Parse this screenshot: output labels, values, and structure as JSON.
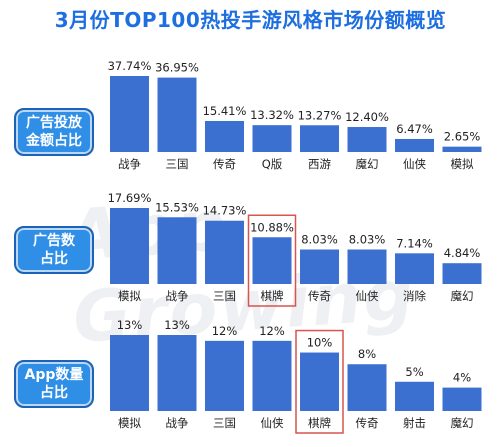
{
  "title": "3月份TOP100热投手游风格市场份额概览",
  "watermark": "App Growing",
  "colors": {
    "bar": "#3b6fd0",
    "highlight": "#d9534f",
    "title": "#1d6fe0",
    "badge": "#2f8ee6"
  },
  "chart_data": [
    {
      "type": "bar",
      "badge": [
        "广告投放",
        "金额占比"
      ],
      "categories": [
        "战争",
        "三国",
        "传奇",
        "Q版",
        "西游",
        "魔幻",
        "仙侠",
        "模拟"
      ],
      "labels": [
        "37.74%",
        "36.95%",
        "15.41%",
        "13.32%",
        "13.27%",
        "12.40%",
        "6.47%",
        "2.65%"
      ],
      "values": [
        37.74,
        36.95,
        15.41,
        13.32,
        13.27,
        12.4,
        6.47,
        2.65
      ],
      "highlight": []
    },
    {
      "type": "bar",
      "badge": [
        "广告数",
        "占比"
      ],
      "categories": [
        "模拟",
        "战争",
        "三国",
        "棋牌",
        "传奇",
        "仙侠",
        "消除",
        "魔幻"
      ],
      "labels": [
        "17.69%",
        "15.53%",
        "14.73%",
        "10.88%",
        "8.03%",
        "8.03%",
        "7.14%",
        "4.84%"
      ],
      "values": [
        17.69,
        15.53,
        14.73,
        10.88,
        8.03,
        8.03,
        7.14,
        4.84
      ],
      "highlight": [
        3
      ]
    },
    {
      "type": "bar",
      "badge": [
        "App数量",
        "占比"
      ],
      "categories": [
        "模拟",
        "战争",
        "三国",
        "仙侠",
        "棋牌",
        "传奇",
        "射击",
        "魔幻"
      ],
      "labels": [
        "13%",
        "13%",
        "12%",
        "12%",
        "10%",
        "8%",
        "5%",
        "4%"
      ],
      "values": [
        13,
        13,
        12,
        12,
        10,
        8,
        5,
        4
      ],
      "highlight": [
        4
      ]
    }
  ]
}
